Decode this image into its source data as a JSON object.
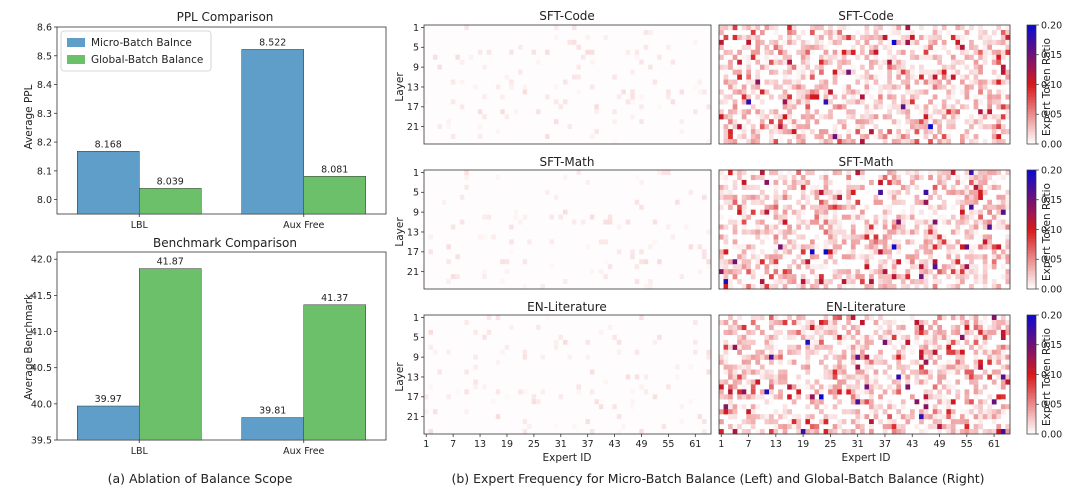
{
  "chart_data": [
    {
      "type": "bar",
      "title": "PPL Comparison",
      "categories": [
        "LBL",
        "Aux Free"
      ],
      "series": [
        {
          "name": "Micro-Batch Balnce",
          "values": [
            8.168,
            8.522
          ],
          "color": "#5f9ec9"
        },
        {
          "name": "Global-Batch Balance",
          "values": [
            8.039,
            8.081
          ],
          "color": "#6cc06a"
        }
      ],
      "value_labels": [
        [
          "8.168",
          "8.522"
        ],
        [
          "8.039",
          "8.081"
        ]
      ],
      "ylabel": "Average PPL",
      "ylim": [
        7.95,
        8.6
      ],
      "yticks": [
        "8.0",
        "8.1",
        "8.2",
        "8.3",
        "8.4",
        "8.5",
        "8.6"
      ],
      "ytick_values": [
        8.0,
        8.1,
        8.2,
        8.3,
        8.4,
        8.5,
        8.6
      ],
      "legend": "top-left"
    },
    {
      "type": "bar",
      "title": "Benchmark Comparison",
      "categories": [
        "LBL",
        "Aux Free"
      ],
      "series": [
        {
          "name": "Micro-Batch Balnce",
          "values": [
            39.97,
            39.81
          ],
          "color": "#5f9ec9"
        },
        {
          "name": "Global-Batch Balance",
          "values": [
            41.87,
            41.37
          ],
          "color": "#6cc06a"
        }
      ],
      "value_labels": [
        [
          "39.97",
          "39.81"
        ],
        [
          "41.87",
          "41.37"
        ]
      ],
      "ylabel": "Average Benchmark",
      "ylim": [
        39.5,
        42.1
      ],
      "yticks": [
        "39.5",
        "40.0",
        "40.5",
        "41.0",
        "41.5",
        "42.0"
      ],
      "ytick_values": [
        39.5,
        40.0,
        40.5,
        41.0,
        41.5,
        42.0
      ]
    },
    {
      "type": "heatmap",
      "rows": [
        {
          "title_left": "SFT-Code",
          "title_right": "SFT-Code"
        },
        {
          "title_left": "SFT-Math",
          "title_right": "SFT-Math"
        },
        {
          "title_left": "EN-Literature",
          "title_right": "EN-Literature"
        }
      ],
      "ylabel": "Layer",
      "xlabel": "Expert ID",
      "yticks": [
        "1",
        "5",
        "9",
        "13",
        "17",
        "21"
      ],
      "xticks": [
        "1",
        "7",
        "13",
        "19",
        "25",
        "31",
        "37",
        "43",
        "49",
        "55",
        "61"
      ],
      "n_experts": 64,
      "n_layers": 24,
      "colorbar_label": "Expert Token Ratio",
      "colorbar_ticks": [
        "0.00",
        "0.05",
        "0.10",
        "0.15",
        "0.20"
      ],
      "colorbar_range": [
        0,
        0.2
      ],
      "colors": {
        "low": "#ffffff",
        "mid": "#d7191c",
        "high": "#0b0bd0"
      }
    }
  ],
  "captions": {
    "left": "(a) Ablation of Balance Scope",
    "right": "(b) Expert Frequency for Micro-Batch Balance (Left) and Global-Batch Balance (Right)"
  }
}
